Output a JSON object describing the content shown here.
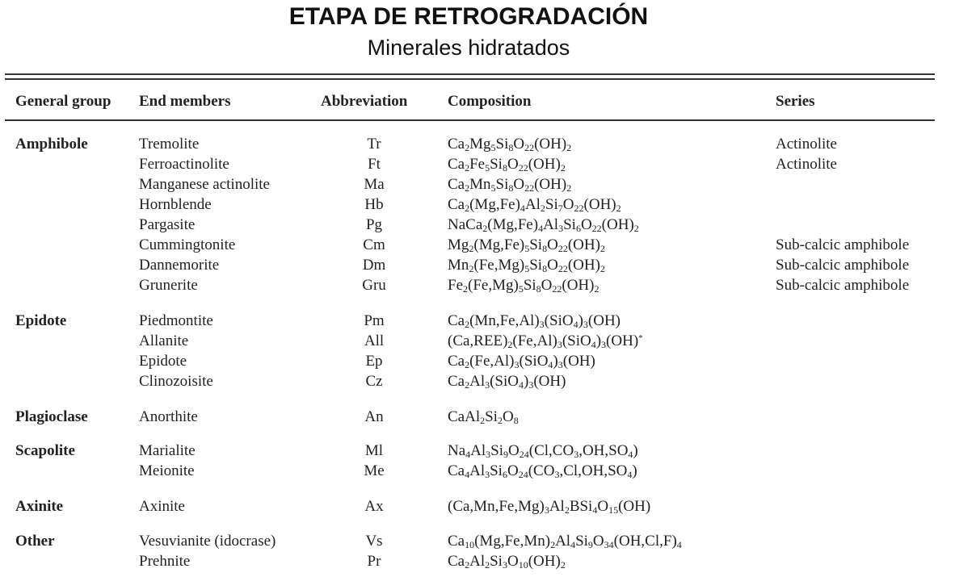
{
  "page": {
    "title": "ETAPA DE  RETROGRADACIÓN",
    "subtitle": "Minerales hidratados"
  },
  "table": {
    "headers": [
      "General group",
      "End members",
      "Abbreviation",
      "Composition",
      "Series"
    ],
    "rows": [
      {
        "group": "Amphibole",
        "member": "Tremolite",
        "abbr": "Tr",
        "comp": "Ca_{2}Mg_{5}Si_{8}O_{22}(OH)_{2}",
        "series": "Actinolite"
      },
      {
        "group": "",
        "member": "Ferroactinolite",
        "abbr": "Ft",
        "comp": "Ca_{2}Fe_{5}Si_{8}O_{22}(OH)_{2}",
        "series": "Actinolite"
      },
      {
        "group": "",
        "member": "Manganese actinolite",
        "abbr": "Ma",
        "comp": "Ca_{2}Mn_{5}Si_{8}O_{22}(OH)_{2}",
        "series": ""
      },
      {
        "group": "",
        "member": "Hornblende",
        "abbr": "Hb",
        "comp": "Ca_{2}(Mg,Fe)_{4}Al_{2}Si_{7}O_{22}(OH)_{2}",
        "series": ""
      },
      {
        "group": "",
        "member": "Pargasite",
        "abbr": "Pg",
        "comp": "NaCa_{2}(Mg,Fe)_{4}Al_{3}Si_{6}O_{22}(OH)_{2}",
        "series": ""
      },
      {
        "group": "",
        "member": "Cummingtonite",
        "abbr": "Cm",
        "comp": "Mg_{2}(Mg,Fe)_{5}Si_{8}O_{22}(OH)_{2}",
        "series": "Sub-calcic amphibole"
      },
      {
        "group": "",
        "member": "Dannemorite",
        "abbr": "Dm",
        "comp": "Mn_{2}(Fe,Mg)_{5}Si_{8}O_{22}(OH)_{2}",
        "series": "Sub-calcic amphibole"
      },
      {
        "group": "",
        "member": "Grunerite",
        "abbr": "Gru",
        "comp": "Fe_{2}(Fe,Mg)_{5}Si_{8}O_{22}(OH)_{2}",
        "series": "Sub-calcic amphibole"
      },
      {
        "group": "Epidote",
        "member": "Piedmontite",
        "abbr": "Pm",
        "comp": "Ca_{2}(Mn,Fe,Al)_{3}(SiO_{4})_{3}(OH)",
        "series": ""
      },
      {
        "group": "",
        "member": "Allanite",
        "abbr": "All",
        "comp": "(Ca,REE)_{2}(Fe,Al)_{3}(SiO_{4})_{3}(OH)^{*}",
        "series": ""
      },
      {
        "group": "",
        "member": "Epidote",
        "abbr": "Ep",
        "comp": "Ca_{2}(Fe,Al)_{3}(SiO_{4})_{3}(OH)",
        "series": ""
      },
      {
        "group": "",
        "member": "Clinozoisite",
        "abbr": "Cz",
        "comp": "Ca_{2}Al_{3}(SiO_{4})_{3}(OH)",
        "series": ""
      },
      {
        "group": "Plagioclase",
        "member": "Anorthite",
        "abbr": "An",
        "comp": "CaAl_{2}Si_{2}O_{8}",
        "series": ""
      },
      {
        "group": "Scapolite",
        "member": "Marialite",
        "abbr": "Ml",
        "comp": "Na_{4}Al_{3}Si_{9}O_{24}(Cl,CO_{3},OH,SO_{4})",
        "series": ""
      },
      {
        "group": "",
        "member": "Meionite",
        "abbr": "Me",
        "comp": "Ca_{4}Al_{3}Si_{6}O_{24}(CO_{3},Cl,OH,SO_{4})",
        "series": ""
      },
      {
        "group": "Axinite",
        "member": "Axinite",
        "abbr": "Ax",
        "comp": "(Ca,Mn,Fe,Mg)_{3}Al_{2}BSi_{4}O_{15}(OH)",
        "series": ""
      },
      {
        "group": "Other",
        "member": "Vesuvianite (idocrase)",
        "abbr": "Vs",
        "comp": "Ca_{10}(Mg,Fe,Mn)_{2}Al_{4}Si_{9}O_{34}(OH,Cl,F)_{4}",
        "series": ""
      },
      {
        "group": "",
        "member": "Prehnite",
        "abbr": "Pr",
        "comp": "Ca_{2}Al_{2}Si_{3}O_{10}(OH)_{2}",
        "series": ""
      }
    ]
  }
}
